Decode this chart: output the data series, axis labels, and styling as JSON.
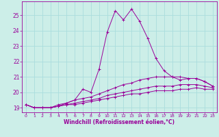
{
  "xlabel": "Windchill (Refroidissement éolien,°C)",
  "ylabel": "",
  "bg_color": "#cceee8",
  "line_color": "#990099",
  "grid_color": "#aadddd",
  "xlim": [
    -0.5,
    23.5
  ],
  "ylim": [
    18.7,
    25.9
  ],
  "xticks": [
    0,
    1,
    2,
    3,
    4,
    5,
    6,
    7,
    8,
    9,
    10,
    11,
    12,
    13,
    14,
    15,
    16,
    17,
    18,
    19,
    20,
    21,
    22,
    23
  ],
  "yticks": [
    19,
    20,
    21,
    22,
    23,
    24,
    25
  ],
  "series": [
    {
      "x": [
        0,
        1,
        2,
        3,
        4,
        5,
        6,
        7,
        8,
        9,
        10,
        11,
        12,
        13,
        14,
        15,
        16,
        17,
        18,
        19,
        20,
        21,
        22,
        23
      ],
      "y": [
        19.2,
        19.0,
        19.0,
        19.0,
        19.1,
        19.3,
        19.5,
        20.2,
        20.0,
        21.5,
        23.9,
        25.3,
        24.7,
        25.4,
        24.6,
        23.5,
        22.2,
        21.4,
        21.0,
        20.8,
        20.9,
        20.9,
        20.7,
        20.4
      ]
    },
    {
      "x": [
        0,
        1,
        2,
        3,
        4,
        5,
        6,
        7,
        8,
        9,
        10,
        11,
        12,
        13,
        14,
        15,
        16,
        17,
        18,
        19,
        20,
        21,
        22,
        23
      ],
      "y": [
        19.2,
        19.0,
        19.0,
        19.0,
        19.2,
        19.3,
        19.5,
        19.6,
        19.7,
        19.9,
        20.1,
        20.3,
        20.5,
        20.6,
        20.8,
        20.9,
        21.0,
        21.0,
        21.0,
        21.0,
        20.9,
        20.9,
        20.7,
        20.4
      ]
    },
    {
      "x": [
        0,
        1,
        2,
        3,
        4,
        5,
        6,
        7,
        8,
        9,
        10,
        11,
        12,
        13,
        14,
        15,
        16,
        17,
        18,
        19,
        20,
        21,
        22,
        23
      ],
      "y": [
        19.2,
        19.0,
        19.0,
        19.0,
        19.1,
        19.2,
        19.3,
        19.4,
        19.5,
        19.6,
        19.8,
        19.9,
        20.0,
        20.1,
        20.2,
        20.3,
        20.4,
        20.4,
        20.4,
        20.5,
        20.5,
        20.5,
        20.4,
        20.3
      ]
    },
    {
      "x": [
        0,
        1,
        2,
        3,
        4,
        5,
        6,
        7,
        8,
        9,
        10,
        11,
        12,
        13,
        14,
        15,
        16,
        17,
        18,
        19,
        20,
        21,
        22,
        23
      ],
      "y": [
        19.2,
        19.0,
        19.0,
        19.0,
        19.1,
        19.2,
        19.2,
        19.3,
        19.4,
        19.5,
        19.6,
        19.7,
        19.8,
        19.9,
        19.9,
        20.0,
        20.1,
        20.1,
        20.1,
        20.2,
        20.2,
        20.3,
        20.2,
        20.2
      ]
    }
  ]
}
